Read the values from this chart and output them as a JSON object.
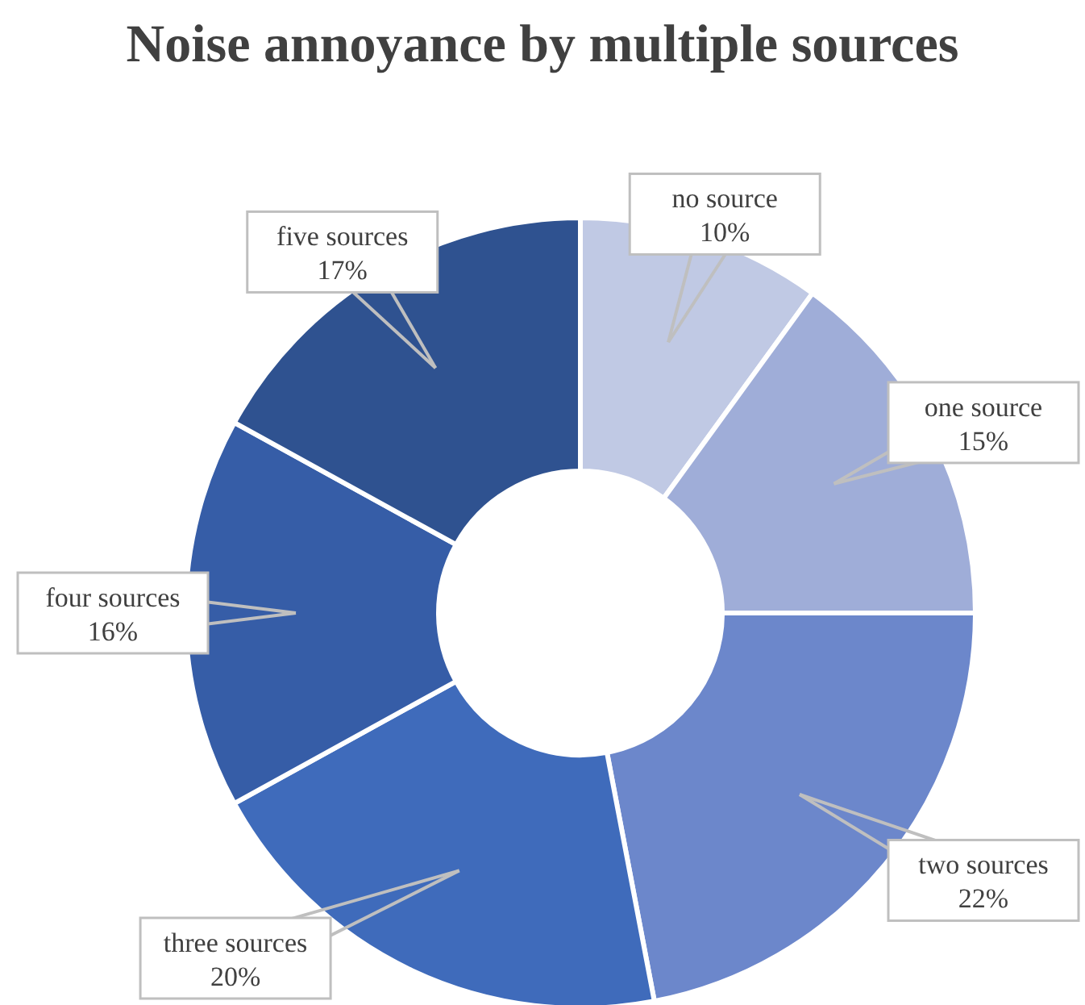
{
  "chart_data": {
    "type": "donut",
    "title": "Noise annoyance by multiple sources",
    "categories": [
      "no source",
      "one source",
      "two sources",
      "three sources",
      "four sources",
      "five sources"
    ],
    "values": [
      10,
      15,
      22,
      20,
      16,
      17
    ],
    "value_labels": [
      "10%",
      "15%",
      "22%",
      "20%",
      "16%",
      "17%"
    ],
    "colors": [
      "#c0c9e4",
      "#9fadd8",
      "#6c87cb",
      "#3f6bbb",
      "#365da7",
      "#2f5290"
    ]
  }
}
